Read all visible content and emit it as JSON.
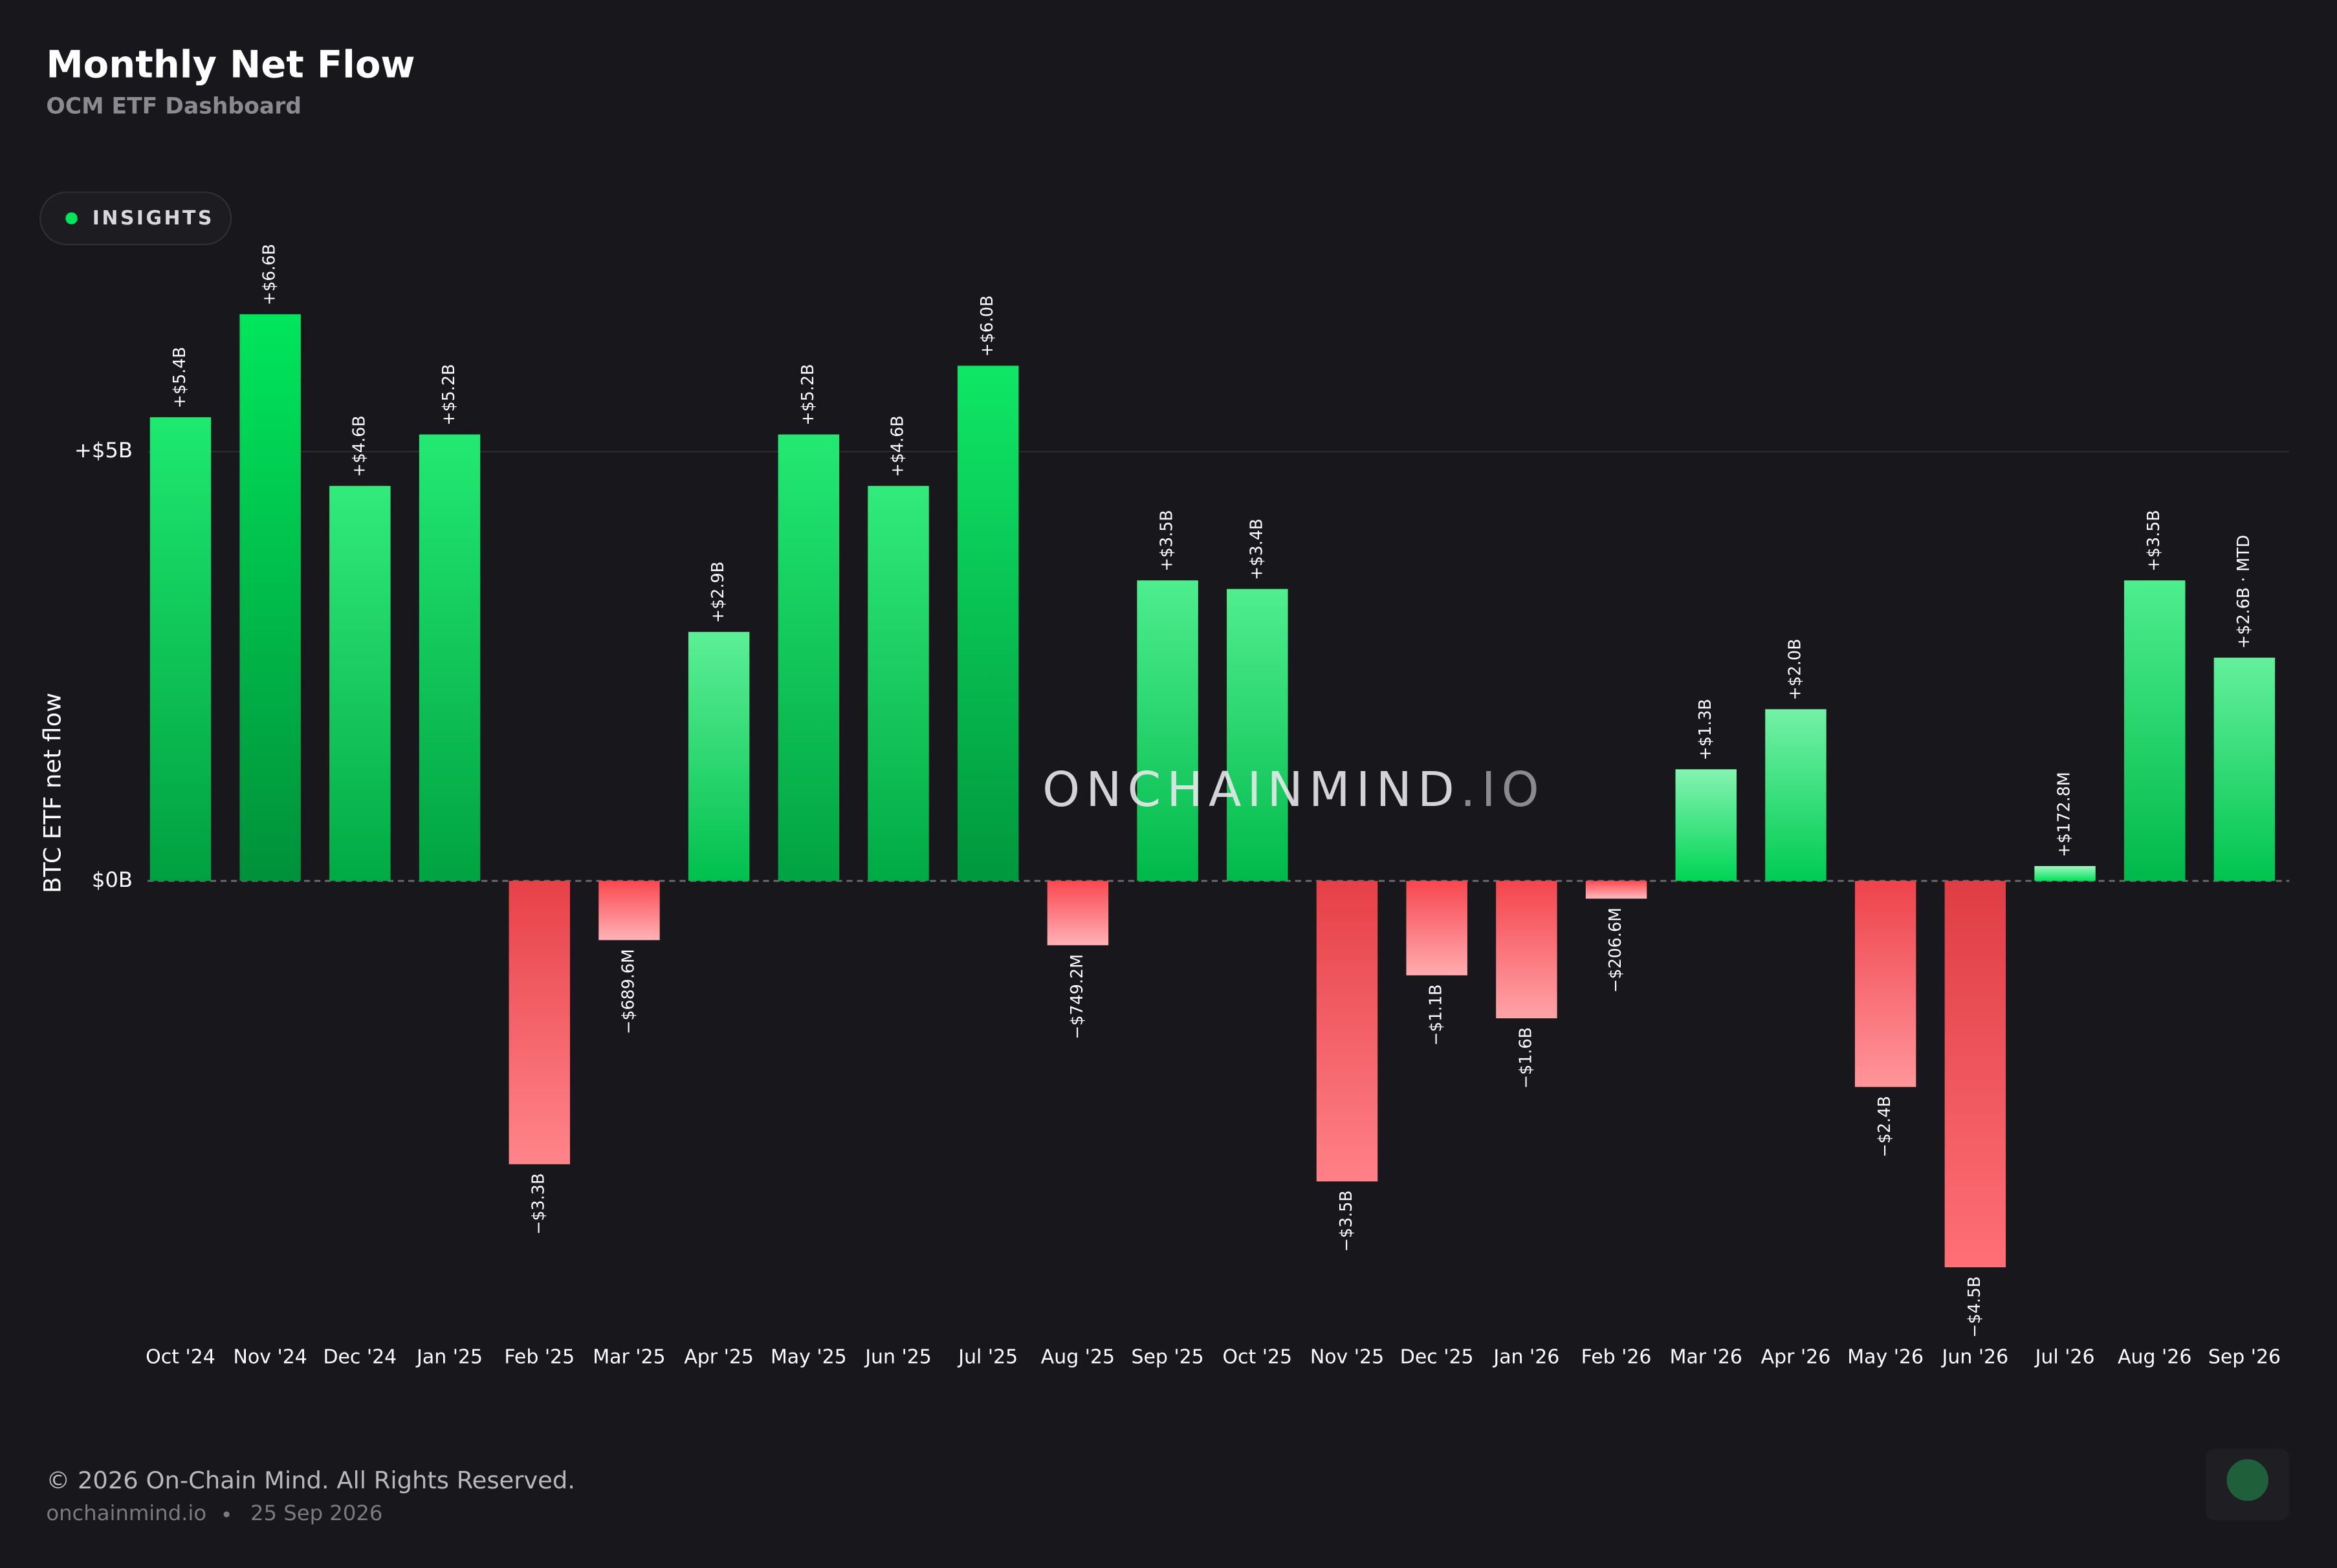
{
  "chart_data": {
    "type": "bar",
    "title": "Monthly Net Flow",
    "subtitle": "OCM ETF Dashboard",
    "badge": "INSIGHTS",
    "y_label": "BTC ETF net flow",
    "watermark": "ONCHAINMIND",
    "watermark_suffix": ".IO",
    "categories": [
      "Oct '24",
      "Nov '24",
      "Dec '24",
      "Jan '25",
      "Feb '25",
      "Mar '25",
      "Apr '25",
      "May '25",
      "Jun '25",
      "Jul '25",
      "Aug '25",
      "Sep '25",
      "Oct '25",
      "Nov '25",
      "Dec '25",
      "Jan '26",
      "Feb '26",
      "Mar '26",
      "Apr '26",
      "May '26",
      "Jun '26",
      "Jul '26",
      "Aug '26",
      "Sep '26"
    ],
    "values": [
      5.4,
      6.6,
      4.6,
      5.2,
      -3.3,
      -0.6896,
      2.9,
      5.2,
      4.6,
      6.0,
      -0.7492,
      3.5,
      3.4,
      -3.5,
      -1.1,
      -1.6,
      -0.2066,
      1.3,
      2.0,
      -2.4,
      -4.5,
      0.1728,
      3.5,
      2.6
    ],
    "value_labels": [
      "+$5.4B",
      "+$6.6B",
      "+$4.6B",
      "+$5.2B",
      "−$3.3B",
      "−$689.6M",
      "+$2.9B",
      "+$5.2B",
      "+$4.6B",
      "+$6.0B",
      "−$749.2M",
      "+$3.5B",
      "+$3.4B",
      "−$3.5B",
      "−$1.1B",
      "−$1.6B",
      "−$206.6M",
      "+$1.3B",
      "+$2.0B",
      "−$2.4B",
      "−$4.5B",
      "+$172.8M",
      "+$3.5B",
      "+$2.6B · MTD"
    ],
    "positive_color": "#00e65c",
    "negative_color": "#ff4a52",
    "ylim": [
      -4.85,
      7.3
    ],
    "yticks": [
      {
        "value": 0,
        "label": "$0B"
      },
      {
        "value": 5,
        "label": "+$5B"
      }
    ],
    "grid": true,
    "footer": {
      "copyright": "© 2026 On-Chain Mind. All Rights Reserved.",
      "site": "onchainmind.io",
      "date": "25 Sep 2026"
    }
  }
}
